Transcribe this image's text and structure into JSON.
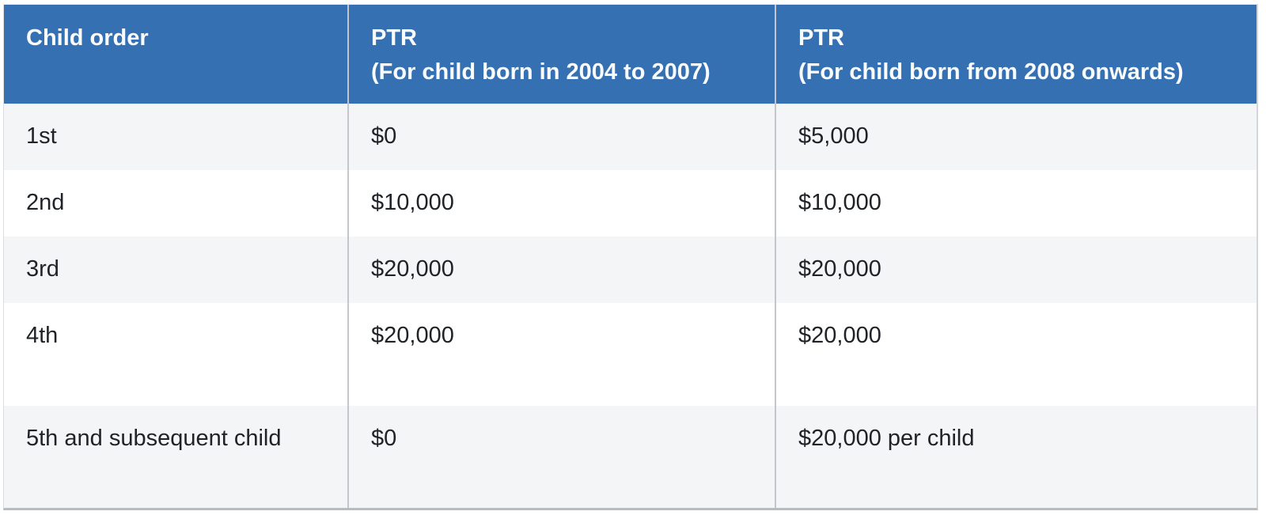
{
  "table": {
    "title_semantic": "Parenthood Tax Rebate (PTR) by child order",
    "header": {
      "col1": {
        "line1": "Child order",
        "line2": ""
      },
      "col2": {
        "line1": "PTR",
        "line2": "(For child born in 2004 to 2007)"
      },
      "col3": {
        "line1": "PTR",
        "line2": "(For child born from 2008 onwards)"
      }
    },
    "rows": [
      [
        "1st",
        "$0",
        "$5,000"
      ],
      [
        "2nd",
        "$10,000",
        "$10,000"
      ],
      [
        "3rd",
        "$20,000",
        "$20,000"
      ],
      [
        "4th",
        "$20,000",
        "$20,000"
      ],
      [
        "5th and subsequent child",
        "$0",
        "$20,000 per child"
      ]
    ],
    "colors": {
      "header_bg": "#3470b2",
      "header_text": "#fafbfc",
      "row_alt_bg": "#f4f5f7",
      "row_bg": "#ffffff",
      "body_text": "#1f2226",
      "column_divider": "#c3c6ca",
      "bottom_border": "#b9bcbe"
    }
  },
  "chart_data": {
    "type": "table",
    "columns": [
      "Child order",
      "PTR (For child born in 2004 to 2007)",
      "PTR (For child born from 2008 onwards)"
    ],
    "rows": [
      [
        "1st",
        "$0",
        "$5,000"
      ],
      [
        "2nd",
        "$10,000",
        "$10,000"
      ],
      [
        "3rd",
        "$20,000",
        "$20,000"
      ],
      [
        "4th",
        "$20,000",
        "$20,000"
      ],
      [
        "5th and subsequent child",
        "$0",
        "$20,000 per child"
      ]
    ]
  }
}
